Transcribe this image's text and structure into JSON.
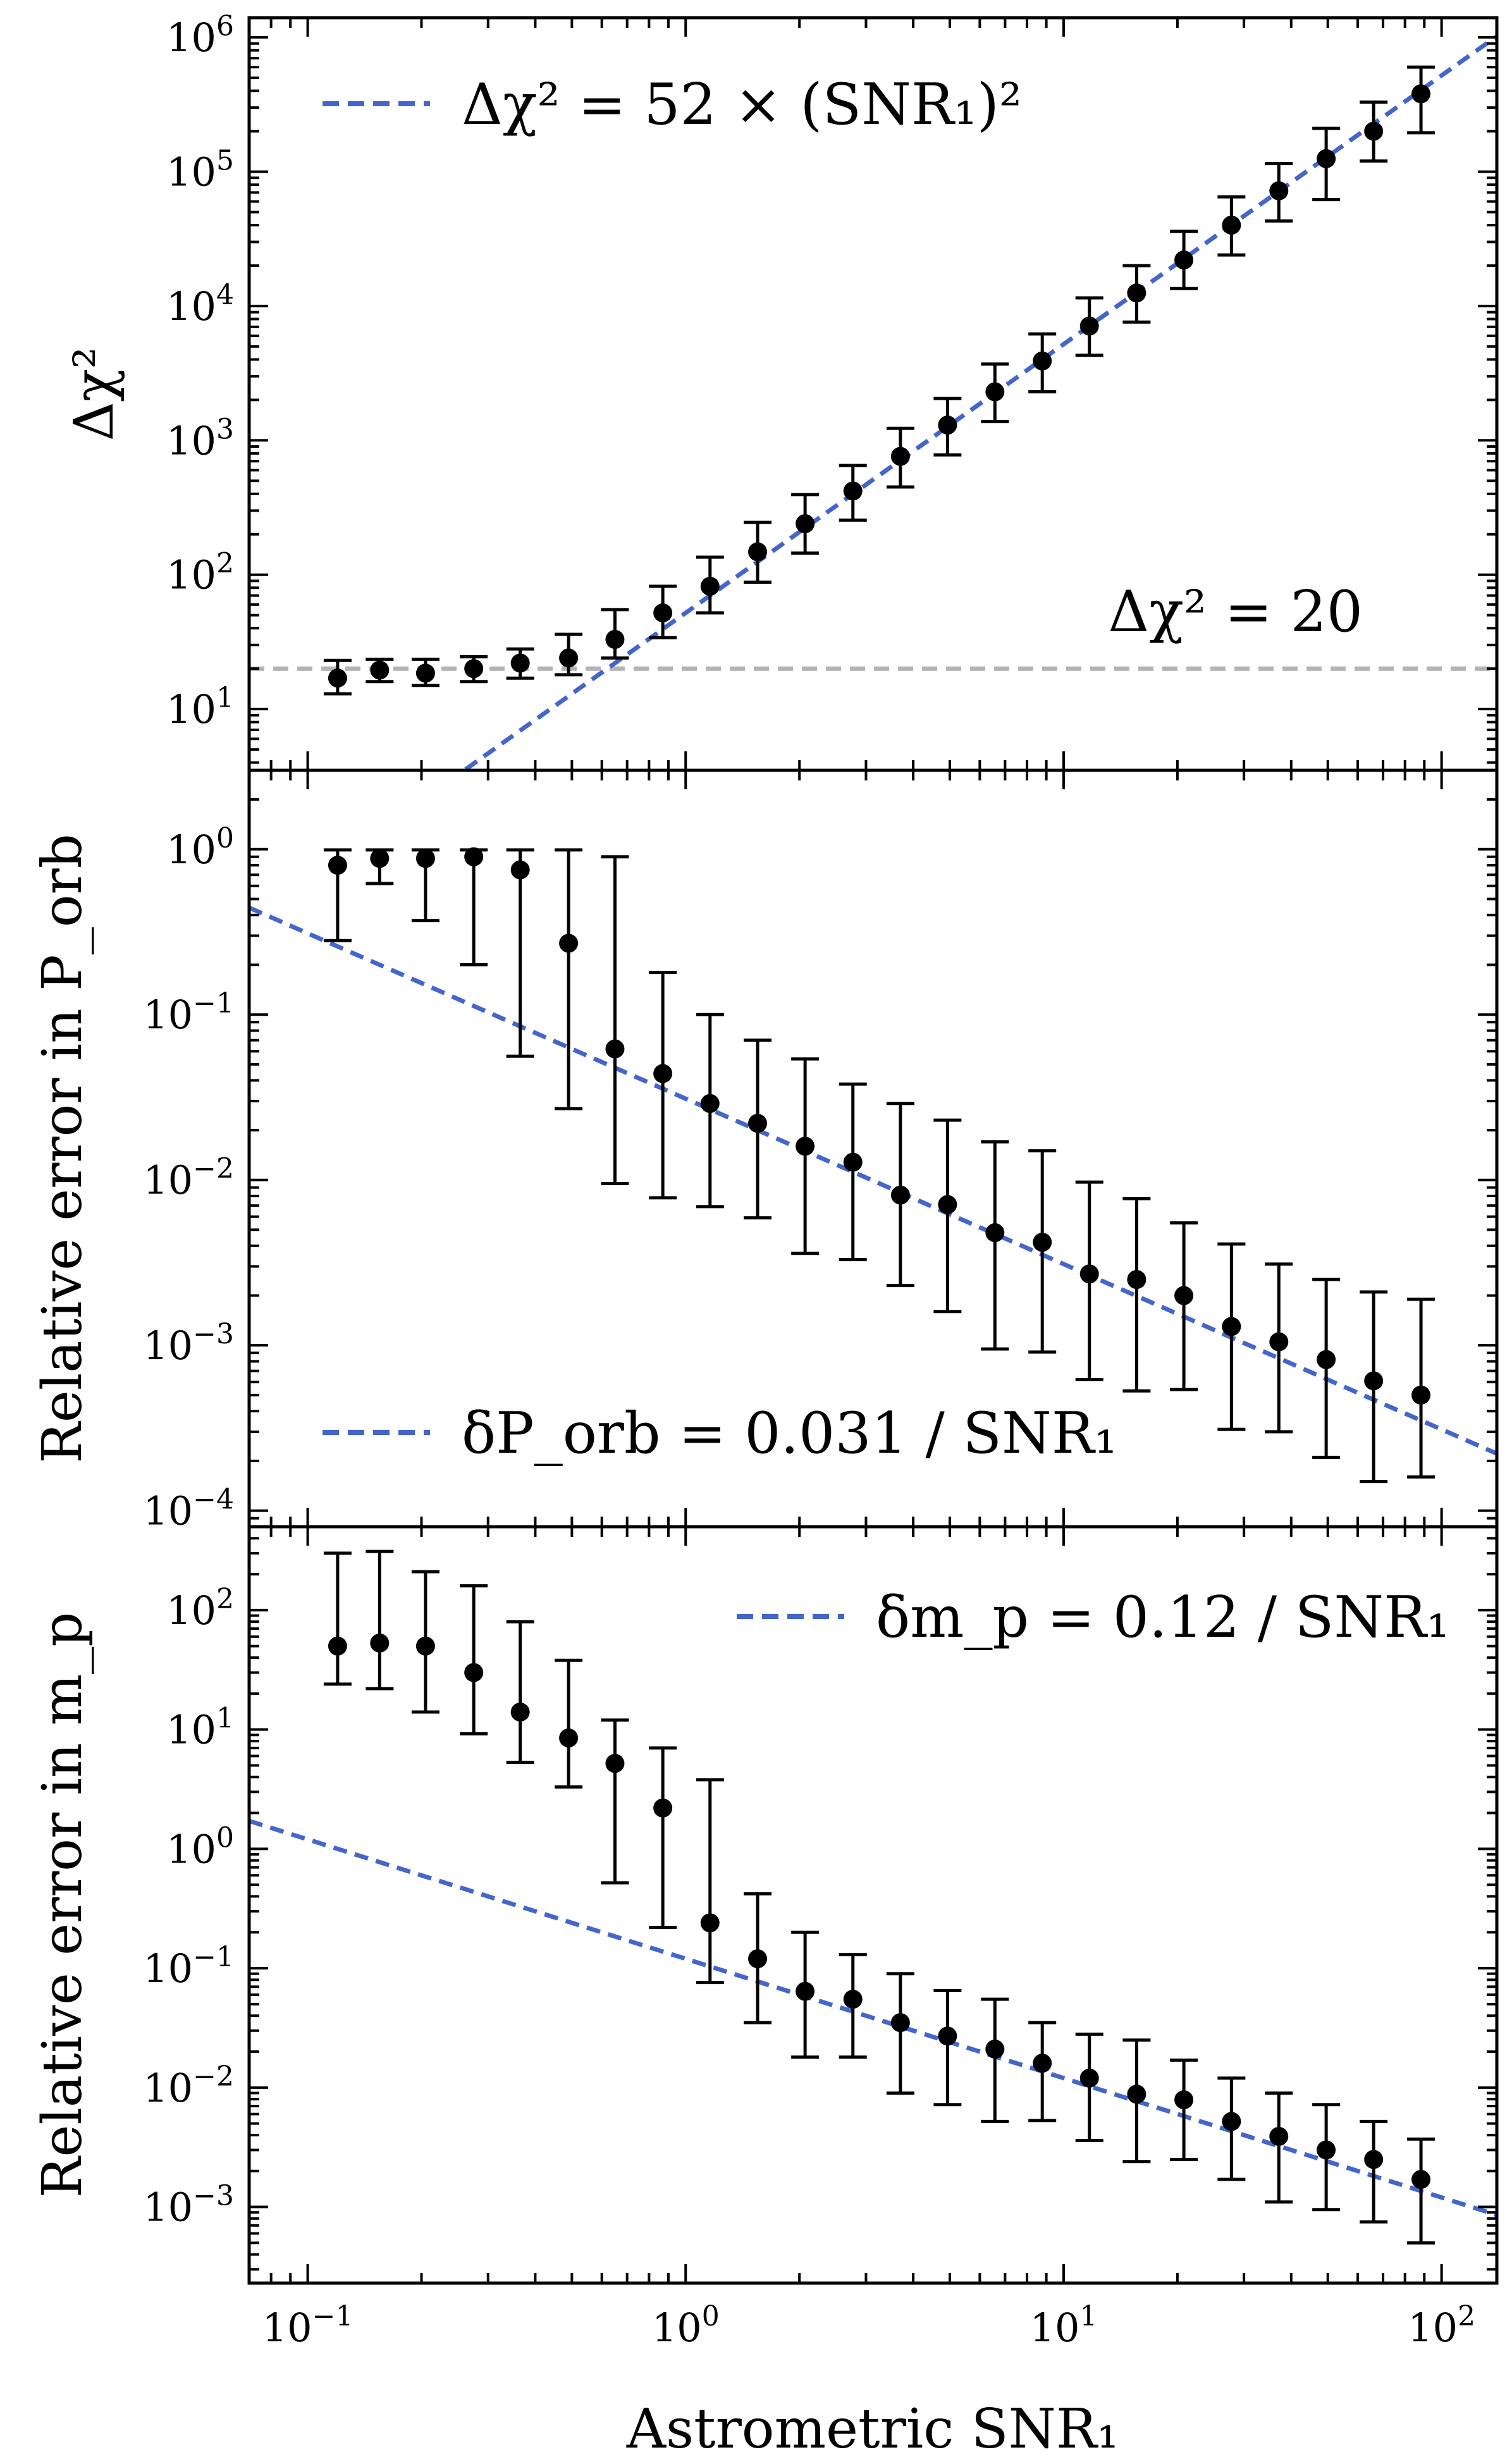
{
  "colors": {
    "fit_line": "#4466cc",
    "threshold_line": "#b3b3b3",
    "points": "#000000"
  },
  "chart_data": {
    "type": "scatter",
    "xlabel": "Astrometric SNR₁",
    "xscale": "log",
    "xlim": [
      0.07,
      140
    ],
    "x_ticks": [
      {
        "value": 0.1,
        "base": "10",
        "exp": "−1"
      },
      {
        "value": 1,
        "base": "10",
        "exp": "0"
      },
      {
        "value": 10,
        "base": "10",
        "exp": "1"
      },
      {
        "value": 100,
        "base": "10",
        "exp": "2"
      }
    ],
    "x": [
      0.12,
      0.155,
      0.205,
      0.275,
      0.365,
      0.49,
      0.65,
      0.87,
      1.16,
      1.55,
      2.07,
      2.77,
      3.7,
      4.93,
      6.58,
      8.78,
      11.7,
      15.6,
      20.8,
      27.8,
      37.1,
      49.5,
      66.1,
      88.2
    ],
    "panels": [
      {
        "name": "delta-chi2",
        "ylabel": "Δχ²",
        "ylim": [
          3.5,
          1400000.0
        ],
        "y_ticks": [
          {
            "value": 10,
            "base": "10",
            "exp": "1"
          },
          {
            "value": 100,
            "base": "10",
            "exp": "2"
          },
          {
            "value": 1000,
            "base": "10",
            "exp": "3"
          },
          {
            "value": 10000,
            "base": "10",
            "exp": "4"
          },
          {
            "value": 100000,
            "base": "10",
            "exp": "5"
          },
          {
            "value": 1000000,
            "base": "10",
            "exp": "6"
          }
        ],
        "y": [
          17,
          19.5,
          18.5,
          20,
          22,
          24,
          33,
          52,
          82,
          148,
          240,
          420,
          760,
          1300,
          2300,
          3900,
          7100,
          12500,
          22000,
          40000,
          72000,
          125000,
          200000,
          380000
        ],
        "y_low": [
          13,
          16,
          15,
          16,
          17,
          18,
          24,
          34,
          52,
          88,
          145,
          255,
          450,
          780,
          1380,
          2300,
          4300,
          7600,
          13500,
          24000,
          43000,
          62000,
          120000,
          195000
        ],
        "y_high": [
          23,
          23.5,
          23.5,
          24.5,
          28,
          36,
          55,
          82,
          135,
          245,
          395,
          650,
          1230,
          2050,
          3700,
          6200,
          11500,
          20000,
          36000,
          65000,
          115000,
          210000,
          330000,
          600000
        ],
        "fit": {
          "coef": 52,
          "power": 2,
          "label": "Δχ² = 52 × (SNR₁)²"
        },
        "threshold": {
          "value": 20,
          "label": "Δχ² = 20"
        }
      },
      {
        "name": "porb-error",
        "ylabel": "Relative error in P_orb",
        "ylim": [
          8e-05,
          3
        ],
        "y_ticks": [
          {
            "value": 0.0001,
            "base": "10",
            "exp": "−4"
          },
          {
            "value": 0.001,
            "base": "10",
            "exp": "−3"
          },
          {
            "value": 0.01,
            "base": "10",
            "exp": "−2"
          },
          {
            "value": 0.1,
            "base": "10",
            "exp": "−1"
          },
          {
            "value": 1,
            "base": "10",
            "exp": "0"
          }
        ],
        "y": [
          0.8,
          0.88,
          0.88,
          0.9,
          0.75,
          0.27,
          0.062,
          0.044,
          0.029,
          0.022,
          0.016,
          0.0128,
          0.0081,
          0.0071,
          0.0048,
          0.0042,
          0.0027,
          0.0025,
          0.002,
          0.0013,
          0.00105,
          0.00082,
          0.00061,
          0.0005
        ],
        "y_low": [
          0.28,
          0.62,
          0.37,
          0.2,
          0.056,
          0.027,
          0.0095,
          0.0078,
          0.0069,
          0.0059,
          0.0036,
          0.0033,
          0.0023,
          0.0016,
          0.00095,
          0.00091,
          0.00062,
          0.00053,
          0.00054,
          0.00031,
          0.0003,
          0.00021,
          0.00015,
          0.00016
        ],
        "y_high": [
          0.99,
          0.99,
          0.99,
          0.99,
          0.99,
          0.99,
          0.9,
          0.18,
          0.1,
          0.07,
          0.054,
          0.038,
          0.029,
          0.023,
          0.017,
          0.015,
          0.0097,
          0.0077,
          0.0055,
          0.0041,
          0.0031,
          0.0025,
          0.0021,
          0.0019
        ],
        "fit": {
          "coef": 0.031,
          "power": -1,
          "label": "δP_orb = 0.031 / SNR₁"
        }
      },
      {
        "name": "mp-error",
        "ylabel": "Relative error in m_p",
        "ylim": [
          0.00023,
          500
        ],
        "y_ticks": [
          {
            "value": 0.001,
            "base": "10",
            "exp": "−3"
          },
          {
            "value": 0.01,
            "base": "10",
            "exp": "−2"
          },
          {
            "value": 0.1,
            "base": "10",
            "exp": "−1"
          },
          {
            "value": 1,
            "base": "10",
            "exp": "0"
          },
          {
            "value": 10,
            "base": "10",
            "exp": "1"
          },
          {
            "value": 100,
            "base": "10",
            "exp": "2"
          }
        ],
        "y": [
          50,
          53,
          50,
          30,
          14,
          8.5,
          5.2,
          2.2,
          0.24,
          0.12,
          0.064,
          0.055,
          0.035,
          0.027,
          0.021,
          0.016,
          0.012,
          0.0088,
          0.0079,
          0.0052,
          0.0039,
          0.003,
          0.0025,
          0.0017
        ],
        "y_low": [
          24,
          22,
          14,
          9.2,
          5.3,
          3.3,
          0.52,
          0.22,
          0.076,
          0.035,
          0.018,
          0.018,
          0.009,
          0.0072,
          0.0052,
          0.0053,
          0.0036,
          0.0024,
          0.0025,
          0.0017,
          0.0011,
          0.00095,
          0.00075,
          0.0005
        ],
        "y_high": [
          300,
          310,
          210,
          160,
          80,
          38,
          12,
          7,
          3.8,
          0.42,
          0.2,
          0.13,
          0.09,
          0.065,
          0.055,
          0.035,
          0.028,
          0.025,
          0.017,
          0.012,
          0.009,
          0.0072,
          0.0052,
          0.0037
        ],
        "fit": {
          "coef": 0.12,
          "power": -1,
          "label": "δm_p = 0.12 / SNR₁"
        }
      }
    ]
  }
}
